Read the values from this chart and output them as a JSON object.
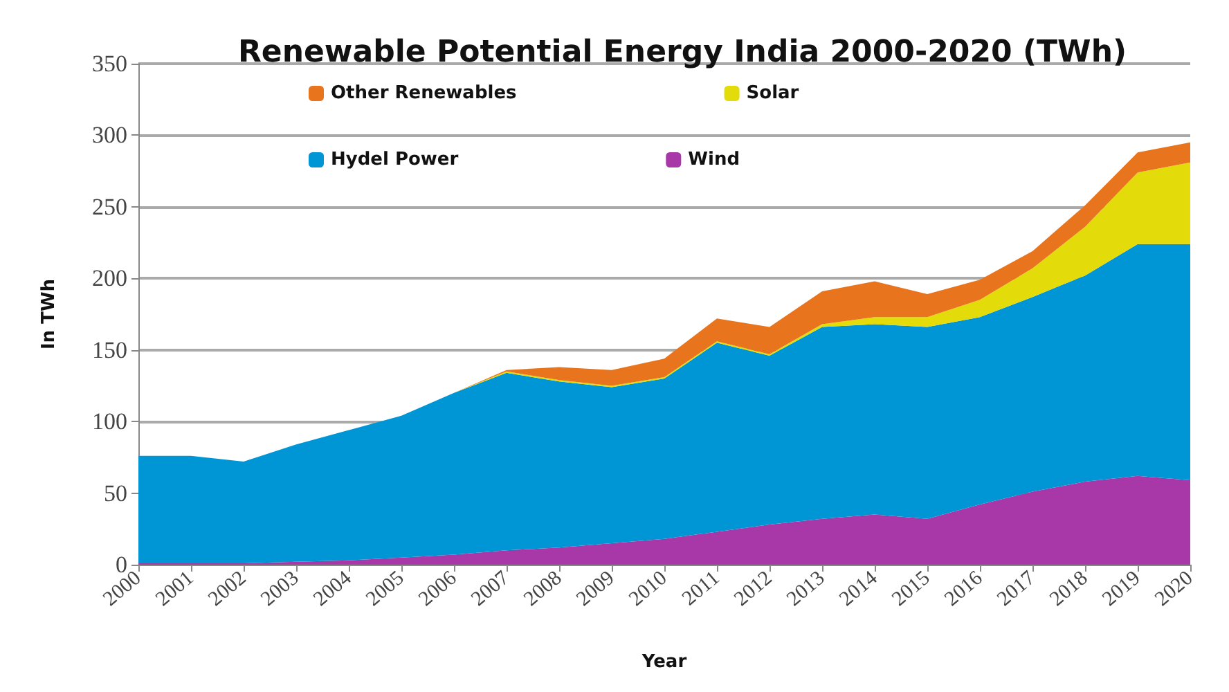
{
  "chart_data": {
    "type": "area",
    "title": "Renewable Potential Energy India 2000-2020 (TWh)",
    "xlabel": "Year",
    "ylabel": "In TWh",
    "categories": [
      "2000",
      "2001",
      "2002",
      "2003",
      "2004",
      "2005",
      "2006",
      "2007",
      "2008",
      "2009",
      "2010",
      "2011",
      "2012",
      "2013",
      "2014",
      "2015",
      "2016",
      "2017",
      "2018",
      "2019",
      "2020"
    ],
    "stacked": true,
    "ylim": [
      0,
      350
    ],
    "yticks": [
      0,
      50,
      100,
      150,
      200,
      250,
      300,
      350
    ],
    "grid": "y",
    "legend": "top",
    "marker": "none",
    "series": [
      {
        "name": "Wind",
        "color": "#a838a8",
        "values": [
          1,
          1,
          1,
          2,
          3,
          5,
          7,
          10,
          12,
          15,
          18,
          23,
          28,
          32,
          35,
          32,
          42,
          51,
          58,
          62,
          59
        ]
      },
      {
        "name": "Hydel Power",
        "color": "#0096d6",
        "values": [
          75,
          75,
          71,
          82,
          91,
          99,
          113,
          124,
          116,
          109,
          112,
          132,
          118,
          134,
          133,
          134,
          131,
          136,
          144,
          162,
          165
        ]
      },
      {
        "name": "Solar",
        "color": "#e4dc0a",
        "values": [
          0,
          0,
          0,
          0,
          0,
          0,
          0,
          1,
          1,
          1,
          1,
          1,
          1,
          2,
          5,
          7,
          12,
          20,
          34,
          50,
          57
        ]
      },
      {
        "name": "Other Renewables",
        "color": "#e8741e",
        "values": [
          0,
          0,
          0,
          0,
          0,
          0,
          0,
          1,
          9,
          11,
          13,
          16,
          19,
          23,
          25,
          16,
          14,
          12,
          15,
          14,
          14
        ]
      }
    ]
  }
}
